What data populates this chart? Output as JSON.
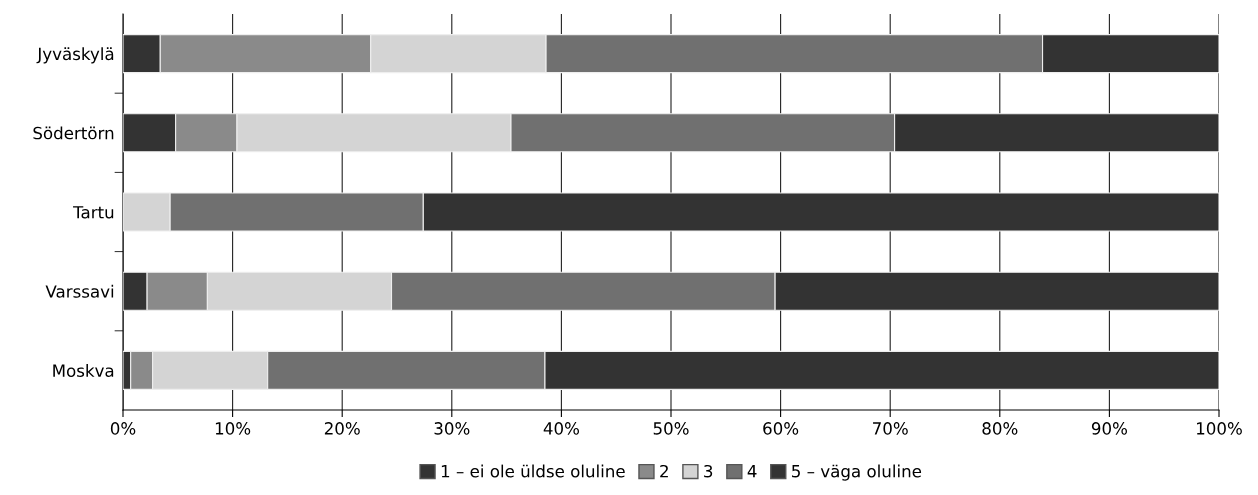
{
  "chart_data": {
    "type": "bar",
    "orientation": "horizontal",
    "stacked": true,
    "categories": [
      "Jyväskylä",
      "Södertörn",
      "Tartu",
      "Varssavi",
      "Moskva"
    ],
    "series": [
      {
        "name": "1 – ei ole üldse oluline",
        "color": "#333333",
        "values": [
          3.4,
          4.8,
          0,
          2.2,
          0.7
        ]
      },
      {
        "name": "2",
        "color": "#8a8a8a",
        "values": [
          19.2,
          5.6,
          0,
          5.5,
          2.0
        ]
      },
      {
        "name": "3",
        "color": "#d4d4d4",
        "values": [
          16.0,
          25.0,
          4.3,
          16.8,
          10.5
        ]
      },
      {
        "name": "4",
        "color": "#707070",
        "values": [
          45.3,
          35.0,
          23.1,
          35.0,
          25.3
        ]
      },
      {
        "name": "5 – väga oluline",
        "color": "#333333",
        "values": [
          16.1,
          29.6,
          72.6,
          40.5,
          61.5
        ]
      }
    ],
    "xlim": [
      0,
      100
    ],
    "xticks": [
      {
        "value": 0,
        "label": "0%"
      },
      {
        "value": 10,
        "label": "10%"
      },
      {
        "value": 20,
        "label": "20%"
      },
      {
        "value": 30,
        "label": "30%"
      },
      {
        "value": 40,
        "label": "40%"
      },
      {
        "value": 50,
        "label": "50%"
      },
      {
        "value": 60,
        "label": "60%"
      },
      {
        "value": 70,
        "label": "70%"
      },
      {
        "value": 80,
        "label": "80%"
      },
      {
        "value": 90,
        "label": "90%"
      },
      {
        "value": 100,
        "label": "100%"
      }
    ],
    "grid": "x",
    "legend": "bottom"
  }
}
